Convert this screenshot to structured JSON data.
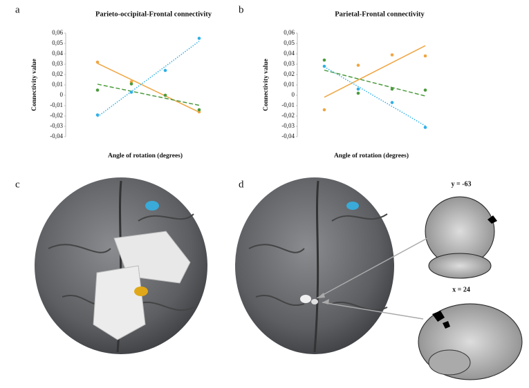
{
  "chart_data": [
    {
      "type": "scatter",
      "title": "Parieto-occipital-Frontal connectivity",
      "ylabel": "Connectivity value",
      "xlabel": "Angle of rotation (degrees)",
      "categories": [
        null,
        null,
        null,
        null
      ],
      "ylim": [
        -0.04,
        0.06
      ],
      "yticks": [
        {
          "value": 0.06,
          "label": "0,06"
        },
        {
          "value": 0.05,
          "label": "0,05"
        },
        {
          "value": 0.04,
          "label": "0,04"
        },
        {
          "value": 0.03,
          "label": "0,03"
        },
        {
          "value": 0.02,
          "label": "0,02"
        },
        {
          "value": 0.01,
          "label": "0,01"
        },
        0,
        {
          "value": -0.01,
          "label": "-0,01"
        },
        {
          "value": -0.02,
          "label": "-0,02"
        },
        {
          "value": -0.03,
          "label": "-0,03"
        },
        {
          "value": -0.04,
          "label": "-0,04"
        }
      ],
      "trendline": true,
      "series": [
        {
          "color": "#f0a542",
          "line_style": "solid",
          "values": [
            0.032,
            0.013,
            0.0,
            -0.016
          ]
        },
        {
          "color": "#4a9a3c",
          "line_style": "dashed",
          "values": [
            0.005,
            0.011,
            0.0,
            -0.014
          ]
        },
        {
          "color": "#2fb0e6",
          "line_style": "dotted",
          "values": [
            -0.019,
            0.003,
            0.024,
            0.055
          ]
        }
      ]
    },
    {
      "type": "scatter",
      "title": "Parietal-Frontal connectivity",
      "ylabel": "Connectivity value",
      "xlabel": "Angle of rotation (degrees)",
      "categories": [
        null,
        null,
        null,
        null
      ],
      "ylim": [
        -0.04,
        0.06
      ],
      "yticks": [
        {
          "value": 0.06,
          "label": "0,06"
        },
        {
          "value": 0.05,
          "label": "0,05"
        },
        {
          "value": 0.04,
          "label": "0,04"
        },
        {
          "value": 0.03,
          "label": "0,03"
        },
        {
          "value": 0.02,
          "label": "0,02"
        },
        {
          "value": 0.01,
          "label": "0,01"
        },
        0,
        {
          "value": -0.01,
          "label": "-0,01"
        },
        {
          "value": -0.02,
          "label": "-0,02"
        },
        {
          "value": -0.03,
          "label": "-0,03"
        },
        {
          "value": -0.04,
          "label": "-0,04"
        }
      ],
      "trendline": true,
      "series": [
        {
          "color": "#f0a542",
          "line_style": "solid",
          "values": [
            -0.014,
            0.029,
            0.039,
            0.038
          ]
        },
        {
          "color": "#4a9a3c",
          "line_style": "dashed",
          "values": [
            0.034,
            0.002,
            0.006,
            0.005
          ]
        },
        {
          "color": "#2fb0e6",
          "line_style": "dotted",
          "values": [
            0.028,
            0.006,
            -0.007,
            -0.031
          ]
        }
      ]
    }
  ],
  "panel_labels": [
    "a",
    "b",
    "c",
    "d"
  ],
  "slice_labels": [
    "y = -63",
    "x = 24"
  ]
}
